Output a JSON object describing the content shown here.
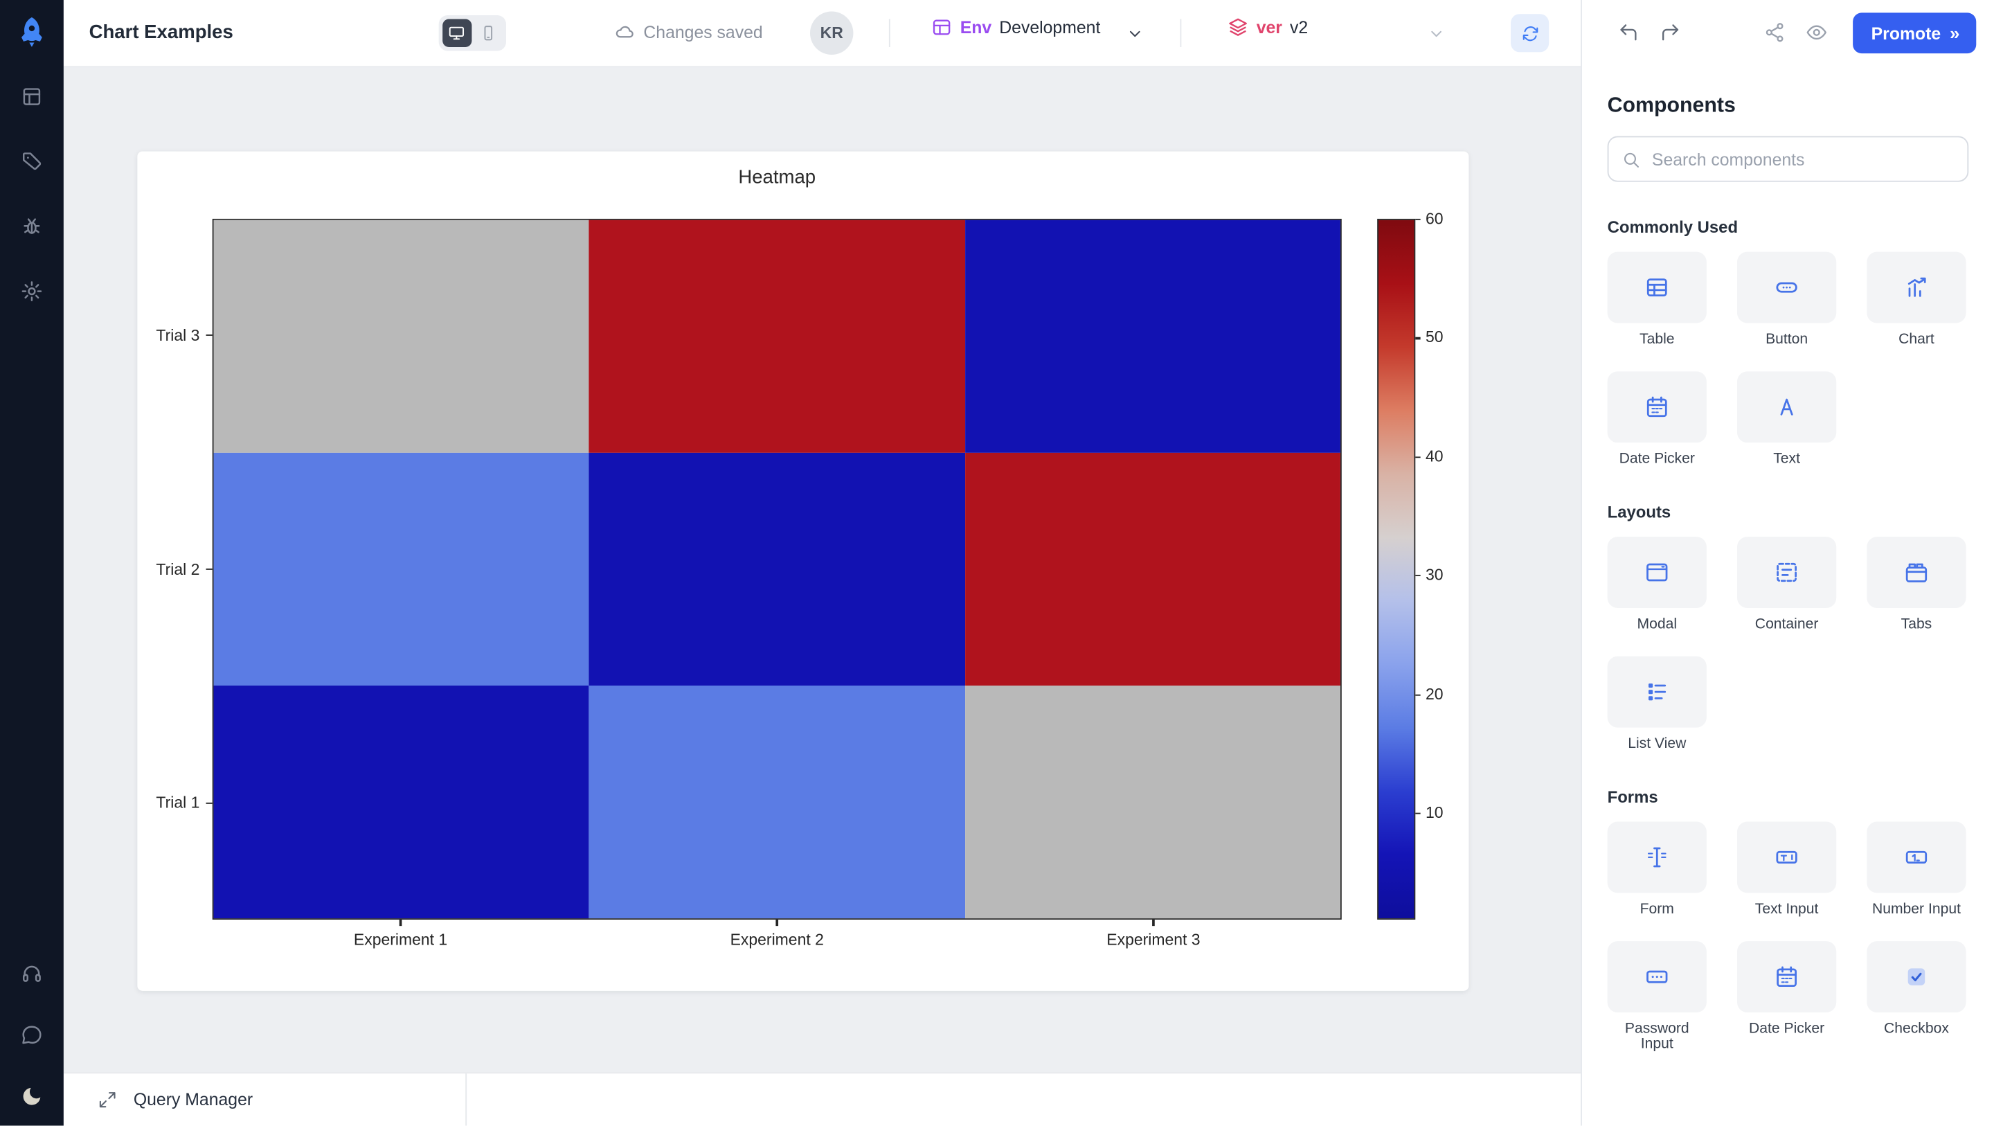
{
  "header": {
    "title": "Chart Examples",
    "status": "Changes saved",
    "avatar": "KR",
    "env_label": "Env",
    "env_value": "Development",
    "ver_label": "ver",
    "ver_value": "v2",
    "promote_label": "Promote",
    "promote_chevron": "»"
  },
  "footer": {
    "query_manager": "Query Manager"
  },
  "components_panel": {
    "title": "Components",
    "search_placeholder": "Search components",
    "sections": [
      {
        "title": "Commonly Used",
        "items": [
          {
            "label": "Table",
            "icon": "table"
          },
          {
            "label": "Button",
            "icon": "button"
          },
          {
            "label": "Chart",
            "icon": "chart"
          },
          {
            "label": "Date Picker",
            "icon": "calendar"
          },
          {
            "label": "Text",
            "icon": "text"
          }
        ]
      },
      {
        "title": "Layouts",
        "items": [
          {
            "label": "Modal",
            "icon": "modal"
          },
          {
            "label": "Container",
            "icon": "container"
          },
          {
            "label": "Tabs",
            "icon": "tabs"
          },
          {
            "label": "List View",
            "icon": "listview"
          }
        ]
      },
      {
        "title": "Forms",
        "items": [
          {
            "label": "Form",
            "icon": "form"
          },
          {
            "label": "Text Input",
            "icon": "textinput"
          },
          {
            "label": "Number Input",
            "icon": "numberinput"
          },
          {
            "label": "Password Input",
            "icon": "passwordinput"
          },
          {
            "label": "Date Picker",
            "icon": "calendar"
          },
          {
            "label": "Checkbox",
            "icon": "checkbox"
          }
        ]
      }
    ]
  },
  "chart_data": {
    "type": "heatmap",
    "title": "Heatmap",
    "x_categories": [
      "Experiment 1",
      "Experiment 2",
      "Experiment 3"
    ],
    "y_categories_top_to_bottom": [
      "Trial 3",
      "Trial 2",
      "Trial 1"
    ],
    "values_rows_top_to_bottom": [
      [
        31,
        60,
        1
      ],
      [
        20,
        1,
        60
      ],
      [
        1,
        20,
        31
      ]
    ],
    "cell_colors_rows_top_to_bottom": [
      [
        "#b9b9b9",
        "#b0131d",
        "#1212b2"
      ],
      [
        "#5b7ce4",
        "#1212b2",
        "#b0131d"
      ],
      [
        "#1212b2",
        "#5b7ce4",
        "#b9b9b9"
      ]
    ],
    "colorbar": {
      "min": 1,
      "max": 60,
      "ticks": [
        60,
        50,
        40,
        30,
        20,
        10
      ],
      "gradient_top_to_bottom": [
        "#7f0a10",
        "#a81016",
        "#c43a2c",
        "#dd7d62",
        "#d9b2a5",
        "#d6d0cf",
        "#b4c0ea",
        "#8aa2ec",
        "#5b7ce4",
        "#2b3ed0",
        "#1414b6",
        "#0e0e9c"
      ]
    }
  },
  "colors": {
    "accent_blue": "#355ff0",
    "component_icon_blue": "#4673e8",
    "env_purple": "#9a4cf0",
    "version_red": "#e0446c",
    "sidebar_bg": "#0f1625",
    "canvas_bg": "#edeff2",
    "heatmap_min_blue": "#1212b2",
    "heatmap_mid_gray": "#b9b9b9",
    "heatmap_max_red": "#b0131d"
  }
}
